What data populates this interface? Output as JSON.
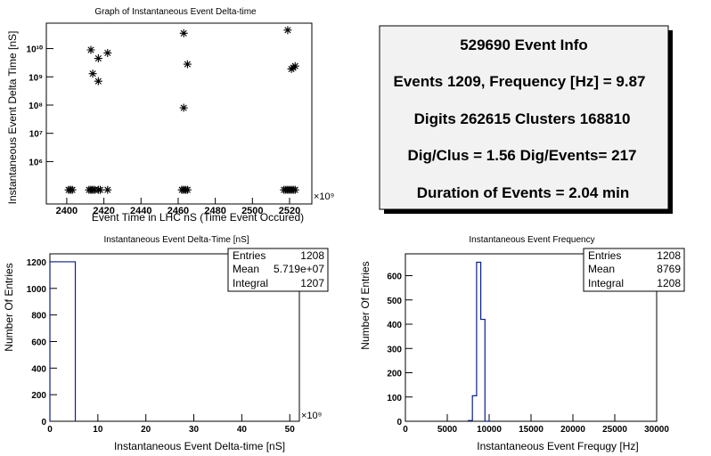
{
  "chart_data": [
    {
      "type": "scatter",
      "title": "Graph of Instantaneous Event Delta-time",
      "xlabel": "Event Time in LHC nS (Time Event Occured)",
      "ylabel": "Instantaneous Event Delta Time [nS]",
      "x_exponent": "×10⁹",
      "x_ticks": [
        2400,
        2420,
        2440,
        2460,
        2480,
        2500,
        2520
      ],
      "xlim": [
        2389,
        2532
      ],
      "y_log": true,
      "ylim_log10": [
        4.5,
        10.9
      ],
      "y_ticks": [
        "10⁶",
        "10⁷",
        "10⁸",
        "10⁹",
        "10¹⁰"
      ],
      "marker": "star",
      "points": [
        [
          2413,
          9000000000.0
        ],
        [
          2414,
          1300000000.0
        ],
        [
          2417,
          4500000000.0
        ],
        [
          2417,
          700000000.0
        ],
        [
          2422,
          7000000000.0
        ],
        [
          2463,
          35000000000.0
        ],
        [
          2463,
          80000000.0
        ],
        [
          2465,
          2800000000.0
        ],
        [
          2519,
          45000000000.0
        ],
        [
          2521,
          1900000000.0
        ],
        [
          2522,
          2100000000.0
        ],
        [
          2523,
          2400000000.0
        ],
        [
          2401,
          100000.0
        ],
        [
          2402,
          100000.0
        ],
        [
          2403,
          100000.0
        ],
        [
          2412,
          100000.0
        ],
        [
          2413,
          100000.0
        ],
        [
          2414,
          100000.0
        ],
        [
          2415,
          100000.0
        ],
        [
          2417,
          100000.0
        ],
        [
          2418,
          100000.0
        ],
        [
          2422,
          100000.0
        ],
        [
          2462,
          100000.0
        ],
        [
          2463,
          100000.0
        ],
        [
          2464,
          100000.0
        ],
        [
          2465,
          100000.0
        ],
        [
          2517,
          100000.0
        ],
        [
          2518,
          100000.0
        ],
        [
          2519,
          100000.0
        ],
        [
          2520,
          100000.0
        ],
        [
          2521,
          100000.0
        ],
        [
          2522,
          100000.0
        ],
        [
          2523,
          100000.0
        ]
      ]
    },
    {
      "type": "bar",
      "title": "Instantaneous Event Delta-Time [nS]",
      "xlabel": "Instantaneous Event Delta-time [nS]",
      "ylabel": "Number Of Entries",
      "x_exponent": "×10⁹",
      "xlim": [
        0,
        52
      ],
      "ylim": [
        0,
        1260
      ],
      "x_ticks": [
        0,
        10,
        20,
        30,
        40,
        50
      ],
      "y_ticks": [
        0,
        200,
        400,
        600,
        800,
        1000,
        1200
      ],
      "bins": [
        {
          "x0": 0,
          "x1": 5.3,
          "value": 1200
        }
      ],
      "stats": {
        "entries_label": "Entries",
        "entries": "1208",
        "mean_label": "Mean",
        "mean": "5.719e+07",
        "integral_label": "Integral",
        "integral": "1207"
      }
    },
    {
      "type": "bar",
      "title": "Instantaneous Event Frequency",
      "xlabel": "Instantaneous Event Frequgy [Hz]",
      "ylabel": "Number Of Entries",
      "xlim": [
        0,
        30000
      ],
      "ylim": [
        0,
        690
      ],
      "x_ticks": [
        0,
        5000,
        10000,
        15000,
        20000,
        25000,
        30000
      ],
      "y_ticks": [
        0,
        100,
        200,
        300,
        400,
        500,
        600
      ],
      "bins": [
        {
          "x0": 7500,
          "x1": 8000,
          "value": 3
        },
        {
          "x0": 8000,
          "x1": 8500,
          "value": 105
        },
        {
          "x0": 8500,
          "x1": 9000,
          "value": 655
        },
        {
          "x0": 9000,
          "x1": 9500,
          "value": 420
        },
        {
          "x0": 9500,
          "x1": 10000,
          "value": 0
        }
      ],
      "stats": {
        "entries_label": "Entries",
        "entries": "1208",
        "mean_label": "Mean",
        "mean": "8769",
        "integral_label": "Integral",
        "integral": "1208"
      }
    }
  ],
  "info": {
    "title": "529690 Event Info",
    "line1": "Events 1209, Frequency [Hz] = 9.87",
    "line2": "Digits 262615 Clusters 168810",
    "line3": "Dig/Clus = 1.56 Dig/Events= 217",
    "line4": "Duration of Events = 2.04 min"
  }
}
